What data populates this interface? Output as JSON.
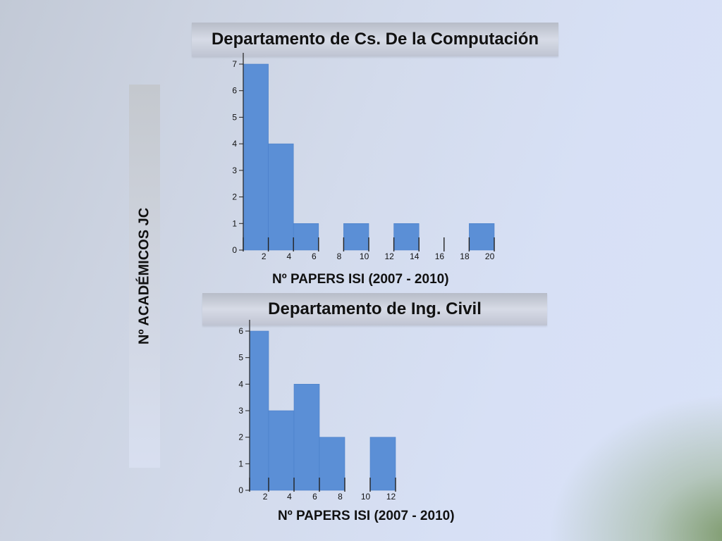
{
  "side_label": "Nº ACADÉMICOS JC",
  "chart_data": [
    {
      "type": "bar",
      "title": "Departamento de Cs. De la Computación",
      "xlabel": "Nº PAPERS ISI (2007 - 2010)",
      "ylabel": "Nº ACADÉMICOS JC",
      "bins": [
        [
          0,
          2
        ],
        [
          2,
          4
        ],
        [
          4,
          6
        ],
        [
          6,
          8
        ],
        [
          8,
          10
        ],
        [
          10,
          12
        ],
        [
          12,
          14
        ],
        [
          14,
          16
        ],
        [
          16,
          18
        ],
        [
          18,
          20
        ]
      ],
      "values": [
        7,
        4,
        1,
        0,
        1,
        0,
        1,
        0,
        0,
        1
      ],
      "xticks": [
        "2",
        "4",
        "6",
        "8",
        "10",
        "12",
        "14",
        "16",
        "18",
        "20"
      ],
      "yticks": [
        "0",
        "1",
        "2",
        "3",
        "4",
        "5",
        "6",
        "7"
      ],
      "xlim": [
        0,
        20
      ],
      "ylim": [
        0,
        7
      ],
      "bar_color": "#5b8fd6",
      "grid": false
    },
    {
      "type": "bar",
      "title": "Departamento de Ing. Civil",
      "xlabel": "Nº PAPERS ISI (2007 - 2010)",
      "ylabel": "Nº ACADÉMICOS JC",
      "bins": [
        [
          0,
          1.5
        ],
        [
          1.5,
          3.5
        ],
        [
          3.5,
          5.5
        ],
        [
          5.5,
          7.5
        ],
        [
          7.5,
          9.5
        ],
        [
          9.5,
          11.5
        ]
      ],
      "values": [
        6,
        3,
        4,
        2,
        0,
        2
      ],
      "xticks": [
        "2",
        "4",
        "6",
        "8",
        "10",
        "12"
      ],
      "yticks": [
        "0",
        "1",
        "2",
        "3",
        "4",
        "5",
        "6"
      ],
      "xlim": [
        0,
        11.5
      ],
      "ylim": [
        0,
        6
      ],
      "bar_color": "#5b8fd6",
      "grid": false
    }
  ]
}
